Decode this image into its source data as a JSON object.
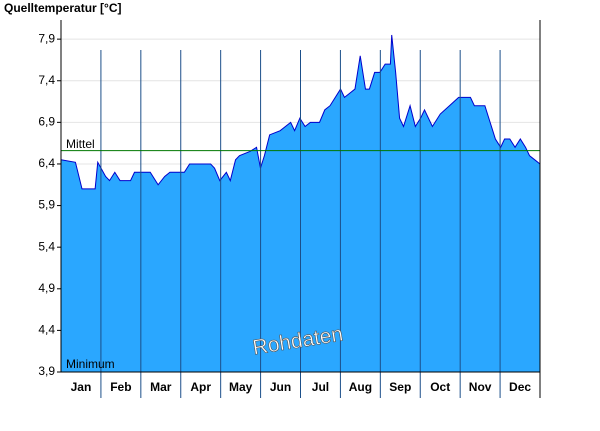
{
  "chart_data": {
    "type": "area",
    "title": "Quelltemperatur [°C]",
    "categories": [
      "Jan",
      "Feb",
      "Mar",
      "Apr",
      "May",
      "Jun",
      "Jul",
      "Aug",
      "Sep",
      "Oct",
      "Nov",
      "Dec"
    ],
    "x": [
      0,
      11,
      16,
      26,
      28,
      34,
      37,
      41,
      45,
      53,
      56,
      68,
      74,
      79,
      83,
      94,
      98,
      114,
      117,
      121,
      126,
      129,
      133,
      136,
      144,
      149,
      152,
      155,
      159,
      167,
      175,
      178,
      182,
      186,
      190,
      197,
      201,
      205,
      213,
      216,
      220,
      224,
      228,
      232,
      235,
      239,
      243,
      247,
      251,
      252,
      255,
      258,
      261,
      266,
      270,
      274,
      277,
      283,
      289,
      296,
      303,
      312,
      315,
      323,
      327,
      331,
      335,
      338,
      342,
      346,
      350,
      354,
      357,
      361,
      365
    ],
    "values": [
      6.45,
      6.42,
      6.1,
      6.1,
      6.42,
      6.25,
      6.2,
      6.3,
      6.2,
      6.2,
      6.3,
      6.3,
      6.15,
      6.25,
      6.3,
      6.3,
      6.4,
      6.4,
      6.35,
      6.2,
      6.3,
      6.2,
      6.45,
      6.5,
      6.55,
      6.6,
      6.35,
      6.5,
      6.75,
      6.8,
      6.9,
      6.8,
      6.95,
      6.85,
      6.9,
      6.9,
      7.05,
      7.1,
      7.3,
      7.2,
      7.25,
      7.3,
      7.7,
      7.3,
      7.3,
      7.5,
      7.5,
      7.6,
      7.6,
      7.95,
      7.5,
      6.95,
      6.85,
      7.1,
      6.85,
      6.95,
      7.05,
      6.85,
      7.0,
      7.1,
      7.2,
      7.2,
      7.1,
      7.1,
      6.9,
      6.7,
      6.6,
      6.7,
      6.7,
      6.6,
      6.7,
      6.6,
      6.5,
      6.45,
      6.4
    ],
    "color": "#2aa7ff",
    "line_color": "#0000cc",
    "xlim": [
      0,
      365
    ],
    "ylim": [
      3.9,
      8.13
    ],
    "yticks": [
      {
        "value": 3.9,
        "label": "3,9"
      },
      {
        "value": 4.4,
        "label": "4,4"
      },
      {
        "value": 4.9,
        "label": "4,9"
      },
      {
        "value": 5.4,
        "label": "5,4"
      },
      {
        "value": 5.9,
        "label": "5,9"
      },
      {
        "value": 6.4,
        "label": "6,4"
      },
      {
        "value": 6.9,
        "label": "6,9"
      },
      {
        "value": 7.4,
        "label": "7,4"
      },
      {
        "value": 7.9,
        "label": "7,9"
      }
    ],
    "grid": true,
    "mean": {
      "label": "Mittel",
      "value": 6.56,
      "color": "#007700"
    },
    "minimum": {
      "label": "Minimum",
      "value": 3.9
    },
    "annotation": "Rohdaten"
  }
}
